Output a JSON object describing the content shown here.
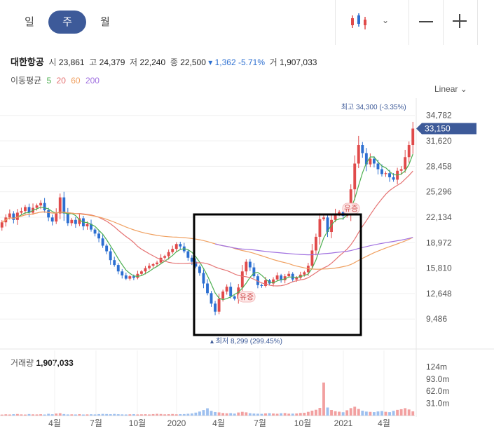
{
  "tabs": [
    {
      "label": "일",
      "active": false
    },
    {
      "label": "주",
      "active": true
    },
    {
      "label": "월",
      "active": false
    }
  ],
  "info": {
    "name": "대한항공",
    "open_label": "시",
    "open": "23,861",
    "high_label": "고",
    "high": "24,379",
    "low_label": "저",
    "low": "22,240",
    "close_label": "종",
    "close": "22,500",
    "change": "▾ 1,362 -5.71%",
    "vol_label": "거",
    "volume": "1,907,033"
  },
  "ma": {
    "label": "이동평균",
    "periods": [
      "5",
      "20",
      "60",
      "200"
    ],
    "colors": [
      "#4caf50",
      "#e57373",
      "#f0a060",
      "#a070e0"
    ]
  },
  "scale_label": "Linear",
  "volume_label": "거래량",
  "volume_value": "1,907,033",
  "colors": {
    "up": "#e04a4a",
    "down": "#2c6fd1",
    "accent": "#3d5a99"
  },
  "chart_data": {
    "type": "candlestick",
    "y_ticks": [
      "34,782",
      "31,620",
      "28,458",
      "25,296",
      "22,134",
      "18,972",
      "15,810",
      "12,648",
      "9,486"
    ],
    "y_tick_values": [
      34782,
      31620,
      28458,
      25296,
      22134,
      18972,
      15810,
      12648,
      9486
    ],
    "ylim": [
      7500,
      36500
    ],
    "current_price": "33,150",
    "high_annotation": "최고 34,300 (-3.35%)",
    "low_annotation": "▴ 최저 8,299 (299.45%)",
    "events": [
      {
        "label": "유증",
        "x": 352
      },
      {
        "label": "유증",
        "x": 501
      }
    ],
    "x_labels": [
      "4월",
      "7월",
      "10월",
      "2020",
      "4월",
      "7월",
      "10월",
      "2021",
      "4월"
    ],
    "vol_ticks": [
      "124m",
      "93.0m",
      "62.0m",
      "31.0m"
    ],
    "closes": [
      21500,
      22100,
      22600,
      21800,
      22700,
      22900,
      23400,
      22700,
      23300,
      23600,
      23900,
      23000,
      22100,
      21600,
      22600,
      24600,
      22600,
      21400,
      21800,
      21300,
      22000,
      21000,
      21300,
      20600,
      20100,
      19500,
      18600,
      17900,
      16800,
      16200,
      15400,
      14900,
      14500,
      14800,
      14600,
      15100,
      15400,
      15800,
      16100,
      16300,
      16500,
      17100,
      17300,
      17800,
      18200,
      18800,
      18500,
      17900,
      17100,
      16600,
      16000,
      15200,
      13900,
      12700,
      11400,
      10400,
      12000,
      12900,
      13500,
      12300,
      12000,
      13400,
      15400,
      16600,
      15900,
      14800,
      13700,
      13600,
      14300,
      13900,
      14400,
      14900,
      14300,
      14800,
      15100,
      14400,
      14600,
      15000,
      15300,
      16100,
      18000,
      19700,
      21900,
      22100,
      20300,
      21800,
      22600,
      22800,
      22300,
      22600,
      25600,
      28800,
      31100,
      30100,
      28700,
      29400,
      28800,
      28100,
      27500,
      27600,
      27100,
      26800,
      27900,
      28100,
      29600,
      31100,
      33150
    ],
    "volumes": [
      2.5,
      3.2,
      2.8,
      3.5,
      4.0,
      3.0,
      2.6,
      3.8,
      3.1,
      2.9,
      3.4,
      2.7,
      4.5,
      3.3,
      5.2,
      6.0,
      3.8,
      2.9,
      3.1,
      2.8,
      3.6,
      2.7,
      3.0,
      3.3,
      2.9,
      3.7,
      4.2,
      3.9,
      3.5,
      4.1,
      3.4,
      3.0,
      2.8,
      3.2,
      3.6,
      2.9,
      3.1,
      3.4,
      2.9,
      3.7,
      4.4,
      3.9,
      3.1,
      3.5,
      4.0,
      3.2,
      3.6,
      3.8,
      4.6,
      5.5,
      7.5,
      10.2,
      14.0,
      18.5,
      12.0,
      9.0,
      8.1,
      6.5,
      5.8,
      6.2,
      5.1,
      7.8,
      9.5,
      8.2,
      6.0,
      5.2,
      4.8,
      4.4,
      5.6,
      6.1,
      5.3,
      4.7,
      5.9,
      6.4,
      4.9,
      5.0,
      5.4,
      6.6,
      7.2,
      9.5,
      12.5,
      14.8,
      19.5,
      84.0,
      20.5,
      14.2,
      11.0,
      9.8,
      8.5,
      13.5,
      19.0,
      22.5,
      16.8,
      12.4,
      10.1,
      9.4,
      8.8,
      10.5,
      11.5,
      9.6,
      8.7,
      12.0,
      14.5,
      16.2,
      18.8,
      15.5,
      10.8
    ]
  }
}
